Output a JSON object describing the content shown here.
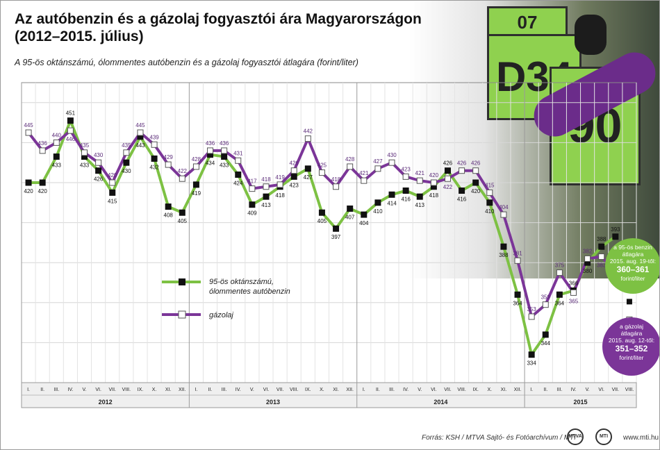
{
  "chart_data": {
    "type": "line",
    "title": "Az autóbenzin és a gázolaj fogyasztói ára Magyarországon (2012–2015. július)",
    "subtitle": "A 95-ös oktánszámú, ólommentes autóbenzin és a gázolaj fogyasztói átlagára (forint/liter)",
    "x_month_labels": [
      "I.",
      "II.",
      "III.",
      "IV.",
      "V.",
      "VI.",
      "VII.",
      "VIII.",
      "IX.",
      "X.",
      "XI.",
      "XII.",
      "I.",
      "II.",
      "III.",
      "IV.",
      "V.",
      "VI.",
      "VII.",
      "VIII.",
      "IX.",
      "X.",
      "XI.",
      "XII.",
      "I.",
      "II.",
      "III.",
      "IV.",
      "V.",
      "VI.",
      "VII.",
      "VIII.",
      "IX.",
      "X.",
      "XI.",
      "XII.",
      "I.",
      "II.",
      "III.",
      "IV.",
      "V.",
      "VI.",
      "VII.",
      "VIII."
    ],
    "years": [
      "2012",
      "2013",
      "2014",
      "2015"
    ],
    "ylim": [
      320,
      470
    ],
    "series": [
      {
        "name": "95-ös oktánszámú, ólommentes autóbenzin",
        "color": "#7dc143",
        "marker": "filled-square",
        "values": [
          420,
          420,
          433,
          451,
          433,
          426,
          415,
          430,
          443,
          432,
          408,
          405,
          419,
          434,
          433,
          424,
          409,
          413,
          418,
          423,
          427,
          405,
          397,
          407,
          404,
          410,
          414,
          416,
          413,
          418,
          426,
          416,
          420,
          410,
          388,
          364,
          334,
          344,
          364,
          366,
          380,
          388,
          393
        ]
      },
      {
        "name": "gázolaj",
        "color": "#7b3598",
        "marker": "open-square",
        "values": [
          445,
          436,
          440,
          446,
          435,
          430,
          420,
          435,
          445,
          439,
          429,
          422,
          428,
          436,
          436,
          431,
          417,
          418,
          419,
          426,
          442,
          425,
          418,
          428,
          421,
          427,
          430,
          423,
          421,
          420,
          422,
          426,
          426,
          415,
          404,
          381,
          353,
          359,
          375,
          365,
          382,
          383,
          376
        ]
      }
    ],
    "legend": {
      "entries": [
        "95-ös oktánszámú, ólommentes autóbenzin",
        "gázolaj"
      ],
      "benzin_line1": "95-ös oktánszámú,",
      "benzin_line2": "ólommentes autóbenzin",
      "placement": "center"
    },
    "annotations": [
      {
        "line1": "a 95-ös benzin",
        "line2": "átlagára",
        "line3": "2015. aug. 19-től:",
        "value": "360–361",
        "unit": "forint/liter",
        "color": "#7dc143"
      },
      {
        "line1": "a gázolaj",
        "line2": "átlagára",
        "line3": "2015. aug. 12-től:",
        "value": "351–352",
        "unit": "forint/liter",
        "color": "#7b3598"
      }
    ],
    "grid": true
  },
  "footer": {
    "source": "Forrás: KSH / MTVA Sajtó- és Fotóarchívum / MTI",
    "website": "www.mti.hu"
  }
}
